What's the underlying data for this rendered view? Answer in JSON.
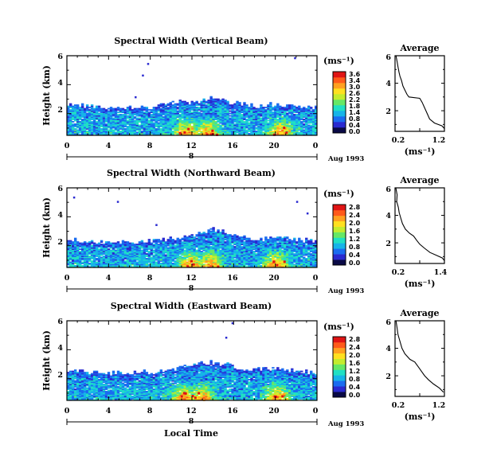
{
  "colors": {
    "colormap": [
      "#0a0a46",
      "#2a2ad0",
      "#1a6cf0",
      "#16b4e8",
      "#20e0c4",
      "#66e866",
      "#c4ec2e",
      "#ffe020",
      "#ffa020",
      "#ff5a1a",
      "#e01414"
    ]
  },
  "x_axis_label": "Local Time",
  "chart_data": [
    {
      "type": "heatmap",
      "title": "Spectral Width (Vertical Beam)",
      "ylabel": "Height (km)",
      "x_ticks": [
        "0",
        "4",
        "8",
        "12",
        "16",
        "20",
        "0"
      ],
      "y_ticks": [
        "2",
        "4",
        "6"
      ],
      "xlim": [
        0,
        24
      ],
      "ylim": [
        0.5,
        6
      ],
      "day_marker": "8",
      "date_label": "Aug 1993",
      "colorbar": {
        "unit": "(ms⁻¹)",
        "ticks": [
          "3.6",
          "3.4",
          "3.0",
          "2.6",
          "2.2",
          "1.8",
          "1.4",
          "0.8",
          "0.4",
          "0.0"
        ],
        "range": [
          0,
          3.6
        ]
      },
      "layer_top_km": [
        [
          0,
          2.6
        ],
        [
          2,
          2.5
        ],
        [
          4,
          2.3
        ],
        [
          6,
          2.4
        ],
        [
          8,
          2.4
        ],
        [
          10,
          2.7
        ],
        [
          12,
          2.8
        ],
        [
          14,
          3.0
        ],
        [
          16,
          2.7
        ],
        [
          18,
          2.5
        ],
        [
          20,
          2.6
        ],
        [
          22,
          2.5
        ],
        [
          24,
          2.4
        ]
      ],
      "hot_times_h": [
        11.5,
        13.5,
        20.5
      ],
      "isolated_points": [
        [
          7.7,
          5.5
        ],
        [
          7.2,
          4.7
        ],
        [
          21.8,
          5.9
        ],
        [
          6.5,
          3.2
        ]
      ],
      "average_profile": {
        "title": "Average",
        "xlabel": "(ms⁻¹)",
        "x_ticks": [
          "0.2",
          "1.2"
        ],
        "y_ticks": [
          "2",
          "4",
          "6"
        ],
        "xlim": [
          0.2,
          1.2
        ],
        "ylim": [
          0.5,
          6
        ],
        "points": [
          [
            0.22,
            6.0
          ],
          [
            0.24,
            5.6
          ],
          [
            0.26,
            5.2
          ],
          [
            0.28,
            4.8
          ],
          [
            0.3,
            4.5
          ],
          [
            0.33,
            4.2
          ],
          [
            0.36,
            3.8
          ],
          [
            0.4,
            3.5
          ],
          [
            0.44,
            3.2
          ],
          [
            0.48,
            3.0
          ],
          [
            0.7,
            2.9
          ],
          [
            0.75,
            2.6
          ],
          [
            0.8,
            2.2
          ],
          [
            0.85,
            1.8
          ],
          [
            0.9,
            1.4
          ],
          [
            1.0,
            1.1
          ],
          [
            1.15,
            0.9
          ],
          [
            1.2,
            0.7
          ]
        ]
      }
    },
    {
      "type": "heatmap",
      "title": "Spectral Width (Northward Beam)",
      "ylabel": "Height (km)",
      "x_ticks": [
        "0",
        "4",
        "8",
        "12",
        "16",
        "20",
        "0"
      ],
      "y_ticks": [
        "2",
        "4",
        "6"
      ],
      "xlim": [
        0,
        24
      ],
      "ylim": [
        0.5,
        6
      ],
      "day_marker": "8",
      "date_label": "Aug 1993",
      "colorbar": {
        "unit": "(ms⁻¹)",
        "ticks": [
          "2.8",
          "2.4",
          "2.0",
          "1.6",
          "1.2",
          "0.8",
          "0.4",
          "0.0"
        ],
        "range": [
          0,
          2.8
        ]
      },
      "layer_top_km": [
        [
          0,
          2.4
        ],
        [
          2,
          2.3
        ],
        [
          4,
          2.2
        ],
        [
          6,
          2.2
        ],
        [
          8,
          2.3
        ],
        [
          10,
          2.4
        ],
        [
          12,
          2.7
        ],
        [
          14,
          3.1
        ],
        [
          16,
          2.7
        ],
        [
          18,
          2.4
        ],
        [
          20,
          2.5
        ],
        [
          22,
          2.4
        ],
        [
          24,
          2.3
        ]
      ],
      "hot_times_h": [
        11.8,
        13.8,
        20.0
      ],
      "isolated_points": [
        [
          0.6,
          5.4
        ],
        [
          4.8,
          5.1
        ],
        [
          22.0,
          5.1
        ],
        [
          8.5,
          3.5
        ],
        [
          23.0,
          4.3
        ]
      ],
      "average_profile": {
        "title": "Average",
        "xlabel": "(ms⁻¹)",
        "x_ticks": [
          "0.2",
          "1.4"
        ],
        "y_ticks": [
          "2",
          "4",
          "6"
        ],
        "xlim": [
          0.2,
          1.4
        ],
        "ylim": [
          0.5,
          6
        ],
        "points": [
          [
            0.22,
            6.0
          ],
          [
            0.25,
            5.5
          ],
          [
            0.24,
            5.0
          ],
          [
            0.28,
            4.6
          ],
          [
            0.3,
            4.2
          ],
          [
            0.34,
            3.8
          ],
          [
            0.38,
            3.4
          ],
          [
            0.45,
            3.0
          ],
          [
            0.55,
            2.7
          ],
          [
            0.65,
            2.5
          ],
          [
            0.72,
            2.2
          ],
          [
            0.8,
            1.9
          ],
          [
            0.92,
            1.6
          ],
          [
            1.05,
            1.3
          ],
          [
            1.2,
            1.1
          ],
          [
            1.35,
            0.9
          ],
          [
            1.4,
            0.7
          ]
        ]
      }
    },
    {
      "type": "heatmap",
      "title": "Spectral Width (Eastward Beam)",
      "ylabel": "Height (km)",
      "x_ticks": [
        "0",
        "4",
        "8",
        "12",
        "16",
        "20",
        "0"
      ],
      "y_ticks": [
        "2",
        "4",
        "6"
      ],
      "xlim": [
        0,
        24
      ],
      "ylim": [
        0.5,
        6
      ],
      "day_marker": "8",
      "date_label": "Aug 1993",
      "colorbar": {
        "unit": "(ms⁻¹)",
        "ticks": [
          "2.8",
          "2.4",
          "2.0",
          "1.6",
          "1.2",
          "0.8",
          "0.4",
          "0.0"
        ],
        "range": [
          0,
          2.8
        ]
      },
      "layer_top_km": [
        [
          0,
          2.5
        ],
        [
          2,
          2.4
        ],
        [
          4,
          2.3
        ],
        [
          6,
          2.4
        ],
        [
          8,
          2.4
        ],
        [
          10,
          2.6
        ],
        [
          12,
          2.9
        ],
        [
          14,
          3.1
        ],
        [
          16,
          2.8
        ],
        [
          18,
          2.6
        ],
        [
          20,
          2.7
        ],
        [
          22,
          2.5
        ],
        [
          24,
          2.4
        ]
      ],
      "hot_times_h": [
        11.2,
        13.0,
        20.2
      ],
      "isolated_points": [
        [
          15.8,
          5.9
        ],
        [
          15.2,
          4.9
        ]
      ],
      "average_profile": {
        "title": "Average",
        "xlabel": "(ms⁻¹)",
        "x_ticks": [
          "0.2",
          "1.2"
        ],
        "y_ticks": [
          "2",
          "4",
          "6"
        ],
        "xlim": [
          0.2,
          1.2
        ],
        "ylim": [
          0.5,
          6
        ],
        "points": [
          [
            0.22,
            6.0
          ],
          [
            0.24,
            5.5
          ],
          [
            0.26,
            5.0
          ],
          [
            0.3,
            4.5
          ],
          [
            0.34,
            4.0
          ],
          [
            0.4,
            3.6
          ],
          [
            0.5,
            3.2
          ],
          [
            0.6,
            3.0
          ],
          [
            0.68,
            2.6
          ],
          [
            0.74,
            2.3
          ],
          [
            0.8,
            2.0
          ],
          [
            0.88,
            1.7
          ],
          [
            0.98,
            1.4
          ],
          [
            1.1,
            1.1
          ],
          [
            1.18,
            0.8
          ]
        ]
      }
    }
  ]
}
